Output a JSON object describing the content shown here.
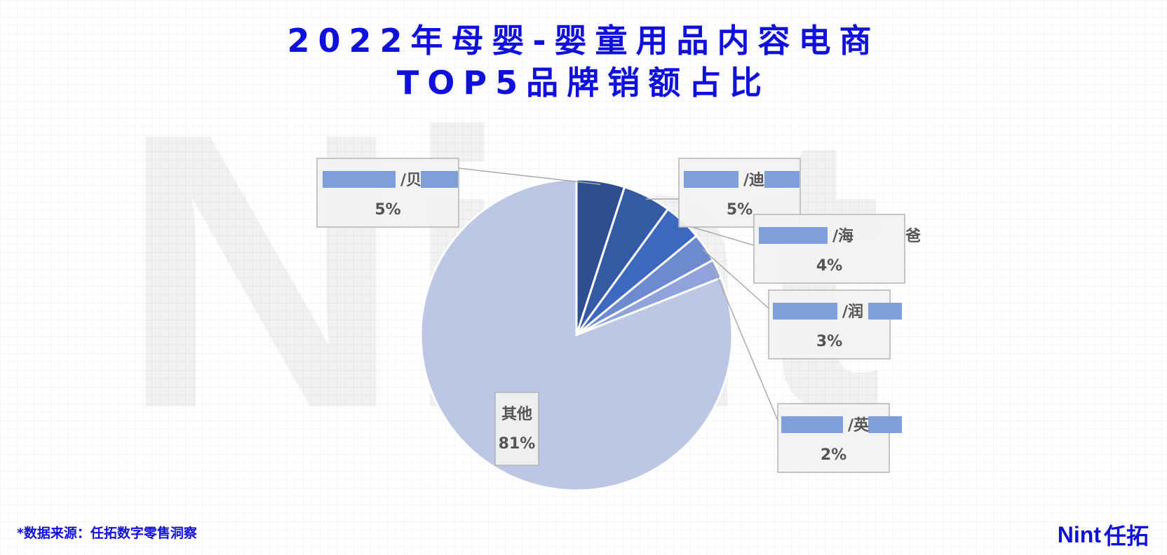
{
  "chart_data": {
    "type": "pie",
    "title_line1": "2022年母婴-婴童用品内容电商",
    "title_line2": "TOP5品牌销额占比",
    "slices": [
      {
        "label": "/贝",
        "value": 5,
        "value_label": "5%",
        "color": "#2e4f8f"
      },
      {
        "label": "/迪",
        "value": 5,
        "value_label": "5%",
        "color": "#355aa4"
      },
      {
        "label": "/海",
        "label_suffix": "爸",
        "value": 4,
        "value_label": "4%",
        "color": "#3d68c0"
      },
      {
        "label": "/润",
        "value": 3,
        "value_label": "3%",
        "color": "#6d89cf"
      },
      {
        "label": "/英",
        "value": 2,
        "value_label": "2%",
        "color": "#8fa3da"
      },
      {
        "label": "其他",
        "value": 81,
        "value_label": "81%",
        "color": "#bcc7e6"
      }
    ]
  },
  "footer": {
    "source": "*数据来源：任拓数字零售洞察",
    "logo_mark": "Nint",
    "logo_name": "任拓"
  },
  "watermark": "Nint",
  "colors": {
    "title": "#1010dd",
    "redaction": "#7f9fdb"
  }
}
